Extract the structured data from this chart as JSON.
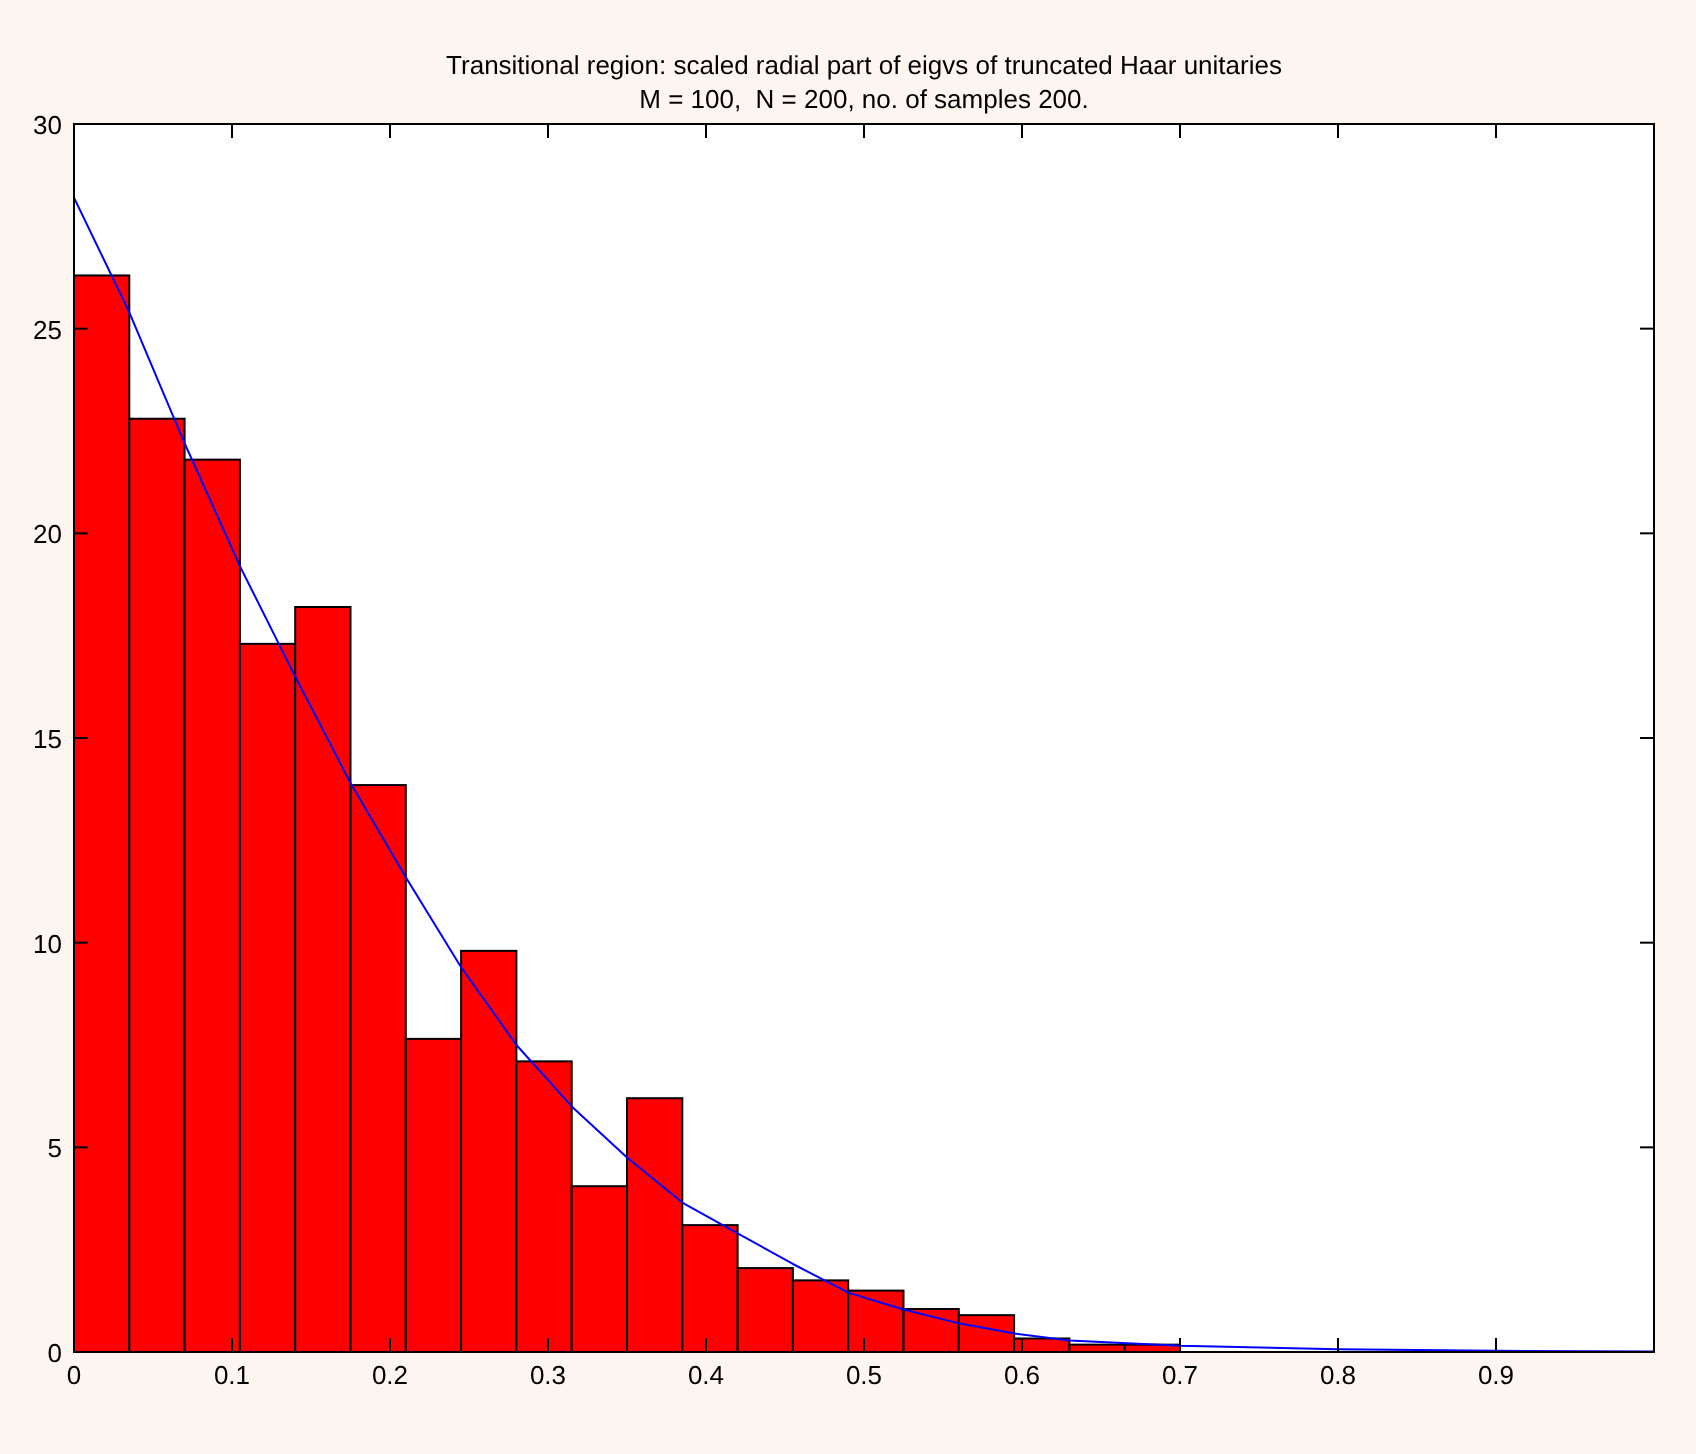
{
  "chart_data": {
    "type": "histogram",
    "title": "Transitional region: scaled radial part of eigvs of truncated Haar unitaries",
    "subtitle": "M = 100,  N = 200, no. of samples 200.",
    "bins": [
      0,
      0.035,
      0.07,
      0.105,
      0.14,
      0.175,
      0.21,
      0.245,
      0.28,
      0.315,
      0.35,
      0.385,
      0.42,
      0.455,
      0.49,
      0.525,
      0.56,
      0.595,
      0.63,
      0.665,
      0.7
    ],
    "values": [
      26.3,
      22.8,
      21.8,
      17.3,
      18.2,
      13.85,
      7.65,
      9.8,
      7.1,
      4.05,
      6.2,
      3.1,
      2.05,
      1.75,
      1.5,
      1.05,
      0.9,
      0.33,
      0.18,
      0.18
    ],
    "color": "#ff0000",
    "series": [
      {
        "type": "line",
        "color": "#0000ff",
        "x": [
          0,
          0.035,
          0.07,
          0.105,
          0.14,
          0.175,
          0.21,
          0.245,
          0.28,
          0.315,
          0.35,
          0.385,
          0.42,
          0.455,
          0.49,
          0.525,
          0.56,
          0.595,
          0.63,
          0.7,
          0.8,
          0.9,
          1
        ],
        "values": [
          28.2,
          25.4,
          22.2,
          19.2,
          16.5,
          13.9,
          11.6,
          9.4,
          7.5,
          6.0,
          4.75,
          3.65,
          2.9,
          2.15,
          1.45,
          1.04,
          0.7,
          0.45,
          0.28,
          0.15,
          0.07,
          0.03,
          0.01
        ]
      }
    ],
    "xlim": [
      0,
      1
    ],
    "xticks": [
      0,
      0.1,
      0.2,
      0.3,
      0.4,
      0.5,
      0.6,
      0.7,
      0.8,
      0.9
    ],
    "ylim": [
      0,
      30
    ],
    "yticks": [
      0,
      5,
      10,
      15,
      20,
      25,
      30
    ],
    "grid": false
  }
}
